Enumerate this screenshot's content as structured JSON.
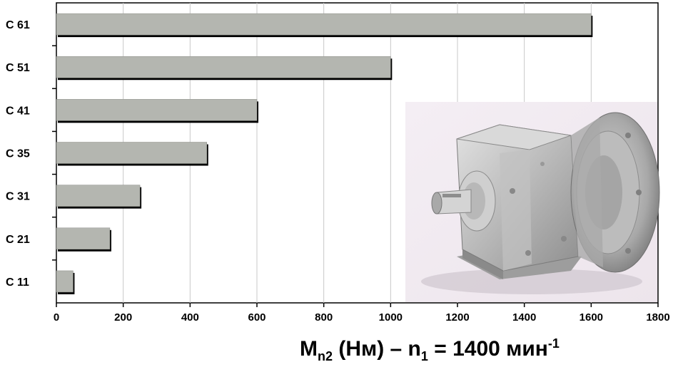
{
  "chart_data": {
    "type": "bar",
    "orientation": "horizontal",
    "categories": [
      "C 61",
      "C 51",
      "C 41",
      "C 35",
      "C 31",
      "C 21",
      "C 11"
    ],
    "values": [
      1600,
      1000,
      600,
      450,
      250,
      160,
      50
    ],
    "xlim": [
      0,
      1800
    ],
    "xticks": [
      "0",
      "200",
      "400",
      "600",
      "800",
      "1000",
      "1200",
      "1400",
      "1600",
      "1800"
    ],
    "xlabel": {
      "m": "M",
      "m_sub": "n2",
      "unit_part": " (Нм) – n",
      "n_sub": "1",
      "rpm_part": " = 1400 мин",
      "rpm_sup": "-1"
    },
    "grid": "vertical",
    "bar_color": "#b4b6b0",
    "inset_image": "gear-motor photo in lower-right corner of plot area"
  }
}
